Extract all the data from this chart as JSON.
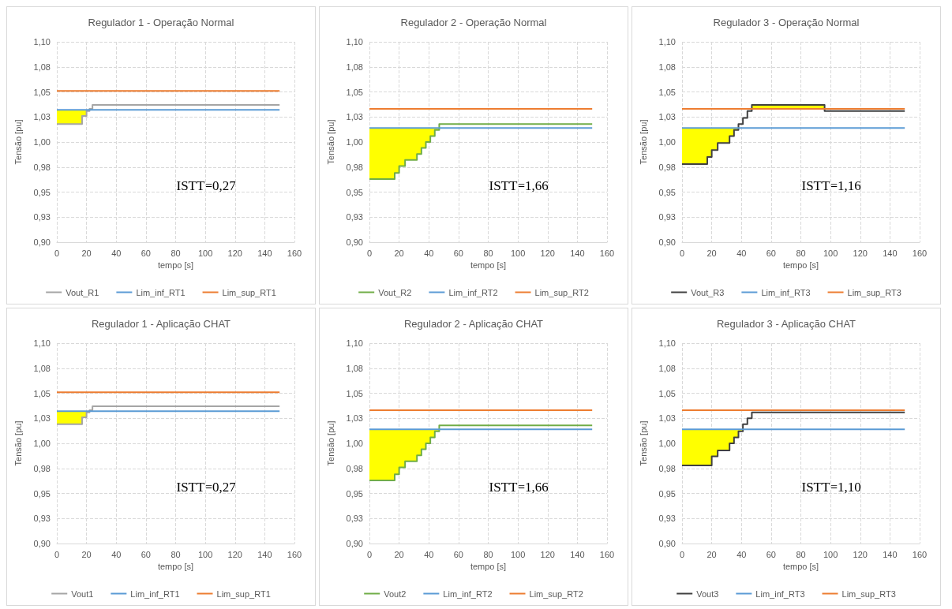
{
  "chart_data": [
    {
      "type": "line",
      "title": "Regulador 1 - Operação Normal",
      "xlabel": "tempo [s]",
      "ylabel": "Tensão [pu]",
      "annotations": [
        "ISTT=0,27"
      ],
      "xlim": [
        0,
        160
      ],
      "xticks": [
        0,
        20,
        40,
        60,
        80,
        100,
        120,
        140,
        160
      ],
      "ylim": [
        0.9,
        1.1
      ],
      "yticks": [
        {
          "value": 0.9,
          "label": "0,90"
        },
        {
          "value": 0.925,
          "label": "0,93"
        },
        {
          "value": 0.95,
          "label": "0,95"
        },
        {
          "value": 0.975,
          "label": "0,98"
        },
        {
          "value": 1.0,
          "label": "1,00"
        },
        {
          "value": 1.025,
          "label": "1,03"
        },
        {
          "value": 1.05,
          "label": "1,05"
        },
        {
          "value": 1.075,
          "label": "1,08"
        },
        {
          "value": 1.1,
          "label": "1,10"
        }
      ],
      "grid": true,
      "legend": "bottom",
      "marker": "none",
      "line_style": "solid",
      "series": [
        {
          "name": "Vout_R1",
          "color": "#a5a5a5",
          "x": [
            0,
            17,
            17,
            20,
            20,
            22,
            22,
            24,
            24,
            150
          ],
          "values": [
            1.018,
            1.018,
            1.026,
            1.026,
            1.031,
            1.031,
            1.033,
            1.033,
            1.037,
            1.037
          ],
          "lower": [
            1.018,
            1.018,
            1.026,
            1.026,
            1.031,
            1.031,
            null,
            null,
            null,
            null
          ],
          "upper": [
            1.032,
            1.032,
            1.032,
            1.032,
            1.032,
            1.032,
            null,
            null,
            null,
            null
          ]
        },
        {
          "name": "Lim_inf_RT1",
          "color": "#5b9bd5",
          "x": [
            0,
            150
          ],
          "values": [
            1.032,
            1.032
          ]
        },
        {
          "name": "Lim_sup_RT1",
          "color": "#ed7d31",
          "x": [
            0,
            150
          ],
          "values": [
            1.051,
            1.051
          ]
        }
      ]
    },
    {
      "type": "line",
      "title": "Regulador 2 - Operação Normal",
      "xlabel": "tempo [s]",
      "ylabel": "Tensão [pu]",
      "annotations": [
        "ISTT=1,66"
      ],
      "xlim": [
        0,
        160
      ],
      "xticks": [
        0,
        20,
        40,
        60,
        80,
        100,
        120,
        140,
        160
      ],
      "ylim": [
        0.9,
        1.1
      ],
      "yticks": [
        {
          "value": 0.9,
          "label": "0,90"
        },
        {
          "value": 0.925,
          "label": "0,93"
        },
        {
          "value": 0.95,
          "label": "0,95"
        },
        {
          "value": 0.975,
          "label": "0,98"
        },
        {
          "value": 1.0,
          "label": "1,00"
        },
        {
          "value": 1.025,
          "label": "1,03"
        },
        {
          "value": 1.05,
          "label": "1,05"
        },
        {
          "value": 1.075,
          "label": "1,08"
        },
        {
          "value": 1.1,
          "label": "1,10"
        }
      ],
      "grid": true,
      "legend": "bottom",
      "marker": "none",
      "line_style": "solid",
      "series": [
        {
          "name": "Vout_R2",
          "color": "#70ad47",
          "x": [
            0,
            17,
            17,
            20,
            20,
            24,
            24,
            32,
            32,
            35,
            35,
            38,
            38,
            41,
            41,
            44,
            44,
            47,
            47,
            150
          ],
          "values": [
            0.963,
            0.963,
            0.969,
            0.969,
            0.976,
            0.976,
            0.982,
            0.982,
            0.988,
            0.988,
            0.994,
            0.994,
            1.0,
            1.0,
            1.006,
            1.006,
            1.012,
            1.012,
            1.018,
            1.018
          ],
          "lower": [
            0.963,
            0.963,
            0.969,
            0.969,
            0.976,
            0.976,
            0.982,
            0.982,
            0.988,
            0.988,
            0.994,
            0.994,
            1.0,
            1.0,
            1.006,
            1.006,
            1.012,
            1.012,
            null,
            null
          ],
          "upper": [
            1.014,
            1.014,
            1.014,
            1.014,
            1.014,
            1.014,
            1.014,
            1.014,
            1.014,
            1.014,
            1.014,
            1.014,
            1.014,
            1.014,
            1.014,
            1.014,
            1.014,
            1.014,
            null,
            null
          ]
        },
        {
          "name": "Lim_inf_RT2",
          "color": "#5b9bd5",
          "x": [
            0,
            150
          ],
          "values": [
            1.014,
            1.014
          ]
        },
        {
          "name": "Lim_sup_RT2",
          "color": "#ed7d31",
          "x": [
            0,
            150
          ],
          "values": [
            1.033,
            1.033
          ]
        }
      ]
    },
    {
      "type": "line",
      "title": "Regulador 3 - Operação Normal",
      "xlabel": "tempo [s]",
      "ylabel": "Tensão [pu]",
      "annotations": [
        "ISTT=1,16"
      ],
      "xlim": [
        0,
        160
      ],
      "xticks": [
        0,
        20,
        40,
        60,
        80,
        100,
        120,
        140,
        160
      ],
      "ylim": [
        0.9,
        1.1
      ],
      "yticks": [
        {
          "value": 0.9,
          "label": "0,90"
        },
        {
          "value": 0.925,
          "label": "0,93"
        },
        {
          "value": 0.95,
          "label": "0,95"
        },
        {
          "value": 0.975,
          "label": "0,98"
        },
        {
          "value": 1.0,
          "label": "1,00"
        },
        {
          "value": 1.025,
          "label": "1,03"
        },
        {
          "value": 1.05,
          "label": "1,05"
        },
        {
          "value": 1.075,
          "label": "1,08"
        },
        {
          "value": 1.1,
          "label": "1,10"
        }
      ],
      "grid": true,
      "legend": "bottom",
      "marker": "none",
      "line_style": "solid",
      "series": [
        {
          "name": "Vout_R3",
          "color": "#404040",
          "x": [
            0,
            17,
            17,
            20,
            20,
            24,
            24,
            32,
            32,
            35,
            35,
            38,
            38,
            41,
            41,
            44,
            44,
            47,
            47,
            96,
            96,
            150
          ],
          "values": [
            0.978,
            0.978,
            0.985,
            0.985,
            0.992,
            0.992,
            0.999,
            0.999,
            1.006,
            1.006,
            1.012,
            1.012,
            1.018,
            1.018,
            1.024,
            1.024,
            1.031,
            1.031,
            1.037,
            1.037,
            1.031,
            1.031
          ],
          "lower": [
            0.978,
            0.978,
            0.985,
            0.985,
            0.992,
            0.992,
            0.999,
            0.999,
            1.006,
            1.006,
            1.012,
            1.012,
            null,
            null,
            null,
            null,
            null,
            null,
            1.033,
            1.033,
            null,
            null
          ],
          "upper": [
            1.014,
            1.014,
            1.014,
            1.014,
            1.014,
            1.014,
            1.014,
            1.014,
            1.014,
            1.014,
            1.014,
            1.014,
            null,
            null,
            null,
            null,
            null,
            null,
            1.037,
            1.037,
            null,
            null
          ]
        },
        {
          "name": "Lim_inf_RT3",
          "color": "#5b9bd5",
          "x": [
            0,
            150
          ],
          "values": [
            1.014,
            1.014
          ]
        },
        {
          "name": "Lim_sup_RT3",
          "color": "#ed7d31",
          "x": [
            0,
            150
          ],
          "values": [
            1.033,
            1.033
          ]
        }
      ]
    },
    {
      "type": "line",
      "title": "Regulador 1 - Aplicação CHAT",
      "xlabel": "tempo [s]",
      "ylabel": "Tensão [pu]",
      "annotations": [
        "ISTT=0,27"
      ],
      "xlim": [
        0,
        160
      ],
      "xticks": [
        0,
        20,
        40,
        60,
        80,
        100,
        120,
        140,
        160
      ],
      "ylim": [
        0.9,
        1.1
      ],
      "yticks": [
        {
          "value": 0.9,
          "label": "0,90"
        },
        {
          "value": 0.925,
          "label": "0,93"
        },
        {
          "value": 0.95,
          "label": "0,95"
        },
        {
          "value": 0.975,
          "label": "0,98"
        },
        {
          "value": 1.0,
          "label": "1,00"
        },
        {
          "value": 1.025,
          "label": "1,03"
        },
        {
          "value": 1.05,
          "label": "1,05"
        },
        {
          "value": 1.075,
          "label": "1,08"
        },
        {
          "value": 1.1,
          "label": "1,10"
        }
      ],
      "grid": true,
      "legend": "bottom",
      "marker": "none",
      "line_style": "solid",
      "series": [
        {
          "name": "Vout1",
          "color": "#a5a5a5",
          "x": [
            0,
            17,
            17,
            20,
            20,
            22,
            22,
            24,
            24,
            150
          ],
          "values": [
            1.019,
            1.019,
            1.026,
            1.026,
            1.031,
            1.031,
            1.033,
            1.033,
            1.037,
            1.037
          ],
          "lower": [
            1.019,
            1.019,
            1.026,
            1.026,
            1.031,
            1.031,
            null,
            null,
            null,
            null
          ],
          "upper": [
            1.032,
            1.032,
            1.032,
            1.032,
            1.032,
            1.032,
            null,
            null,
            null,
            null
          ]
        },
        {
          "name": "Lim_inf_RT1",
          "color": "#5b9bd5",
          "x": [
            0,
            150
          ],
          "values": [
            1.032,
            1.032
          ]
        },
        {
          "name": "Lim_sup_RT1",
          "color": "#ed7d31",
          "x": [
            0,
            150
          ],
          "values": [
            1.051,
            1.051
          ]
        }
      ]
    },
    {
      "type": "line",
      "title": "Regulador 2 - Aplicação CHAT",
      "xlabel": "tempo [s]",
      "ylabel": "Tensão [pu]",
      "annotations": [
        "ISTT=1,66"
      ],
      "xlim": [
        0,
        160
      ],
      "xticks": [
        0,
        20,
        40,
        60,
        80,
        100,
        120,
        140,
        160
      ],
      "ylim": [
        0.9,
        1.1
      ],
      "yticks": [
        {
          "value": 0.9,
          "label": "0,90"
        },
        {
          "value": 0.925,
          "label": "0,93"
        },
        {
          "value": 0.95,
          "label": "0,95"
        },
        {
          "value": 0.975,
          "label": "0,98"
        },
        {
          "value": 1.0,
          "label": "1,00"
        },
        {
          "value": 1.025,
          "label": "1,03"
        },
        {
          "value": 1.05,
          "label": "1,05"
        },
        {
          "value": 1.075,
          "label": "1,08"
        },
        {
          "value": 1.1,
          "label": "1,10"
        }
      ],
      "grid": true,
      "legend": "bottom",
      "marker": "none",
      "line_style": "solid",
      "series": [
        {
          "name": "Vout2",
          "color": "#70ad47",
          "x": [
            0,
            17,
            17,
            20,
            20,
            24,
            24,
            32,
            32,
            35,
            35,
            38,
            38,
            41,
            41,
            44,
            44,
            47,
            47,
            150
          ],
          "values": [
            0.963,
            0.963,
            0.969,
            0.969,
            0.976,
            0.976,
            0.982,
            0.982,
            0.988,
            0.988,
            0.994,
            0.994,
            1.0,
            1.0,
            1.006,
            1.006,
            1.012,
            1.012,
            1.018,
            1.018
          ],
          "lower": [
            0.963,
            0.963,
            0.969,
            0.969,
            0.976,
            0.976,
            0.982,
            0.982,
            0.988,
            0.988,
            0.994,
            0.994,
            1.0,
            1.0,
            1.006,
            1.006,
            1.012,
            1.012,
            null,
            null
          ],
          "upper": [
            1.014,
            1.014,
            1.014,
            1.014,
            1.014,
            1.014,
            1.014,
            1.014,
            1.014,
            1.014,
            1.014,
            1.014,
            1.014,
            1.014,
            1.014,
            1.014,
            1.014,
            1.014,
            null,
            null
          ]
        },
        {
          "name": "Lim_inf_RT2",
          "color": "#5b9bd5",
          "x": [
            0,
            150
          ],
          "values": [
            1.014,
            1.014
          ]
        },
        {
          "name": "Lim_sup_RT2",
          "color": "#ed7d31",
          "x": [
            0,
            150
          ],
          "values": [
            1.033,
            1.033
          ]
        }
      ]
    },
    {
      "type": "line",
      "title": "Regulador 3 - Aplicação CHAT",
      "xlabel": "tempo [s]",
      "ylabel": "Tensão [pu]",
      "annotations": [
        "ISTT=1,10"
      ],
      "xlim": [
        0,
        160
      ],
      "xticks": [
        0,
        20,
        40,
        60,
        80,
        100,
        120,
        140,
        160
      ],
      "ylim": [
        0.9,
        1.1
      ],
      "yticks": [
        {
          "value": 0.9,
          "label": "0,90"
        },
        {
          "value": 0.925,
          "label": "0,93"
        },
        {
          "value": 0.95,
          "label": "0,95"
        },
        {
          "value": 0.975,
          "label": "0,98"
        },
        {
          "value": 1.0,
          "label": "1,00"
        },
        {
          "value": 1.025,
          "label": "1,03"
        },
        {
          "value": 1.05,
          "label": "1,05"
        },
        {
          "value": 1.075,
          "label": "1,08"
        },
        {
          "value": 1.1,
          "label": "1,10"
        }
      ],
      "grid": true,
      "legend": "bottom",
      "marker": "none",
      "line_style": "solid",
      "series": [
        {
          "name": "Vout3",
          "color": "#404040",
          "x": [
            0,
            20,
            20,
            24,
            24,
            32,
            32,
            35,
            35,
            38,
            38,
            41,
            41,
            44,
            44,
            47,
            47,
            150
          ],
          "values": [
            0.978,
            0.978,
            0.987,
            0.987,
            0.993,
            0.993,
            1.0,
            1.0,
            1.006,
            1.006,
            1.012,
            1.012,
            1.019,
            1.019,
            1.025,
            1.025,
            1.031,
            1.031
          ],
          "lower": [
            0.978,
            0.978,
            0.987,
            0.987,
            0.993,
            0.993,
            1.0,
            1.0,
            1.006,
            1.006,
            1.012,
            1.012,
            null,
            null,
            null,
            null,
            null,
            null
          ],
          "upper": [
            1.014,
            1.014,
            1.014,
            1.014,
            1.014,
            1.014,
            1.014,
            1.014,
            1.014,
            1.014,
            1.014,
            1.014,
            null,
            null,
            null,
            null,
            null,
            null
          ]
        },
        {
          "name": "Lim_inf_RT3",
          "color": "#5b9bd5",
          "x": [
            0,
            150
          ],
          "values": [
            1.014,
            1.014
          ]
        },
        {
          "name": "Lim_sup_RT3",
          "color": "#ed7d31",
          "x": [
            0,
            150
          ],
          "values": [
            1.033,
            1.033
          ]
        }
      ]
    }
  ]
}
